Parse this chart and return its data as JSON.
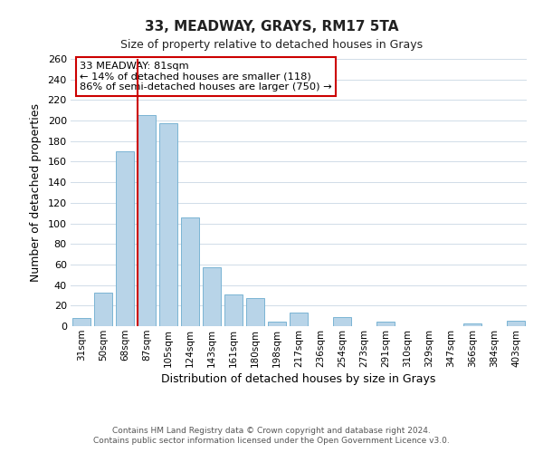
{
  "title": "33, MEADWAY, GRAYS, RM17 5TA",
  "subtitle": "Size of property relative to detached houses in Grays",
  "xlabel": "Distribution of detached houses by size in Grays",
  "ylabel": "Number of detached properties",
  "categories": [
    "31sqm",
    "50sqm",
    "68sqm",
    "87sqm",
    "105sqm",
    "124sqm",
    "143sqm",
    "161sqm",
    "180sqm",
    "198sqm",
    "217sqm",
    "236sqm",
    "254sqm",
    "273sqm",
    "291sqm",
    "310sqm",
    "329sqm",
    "347sqm",
    "366sqm",
    "384sqm",
    "403sqm"
  ],
  "values": [
    8,
    33,
    170,
    205,
    197,
    106,
    57,
    31,
    27,
    4,
    13,
    0,
    9,
    0,
    4,
    0,
    0,
    0,
    3,
    0,
    5
  ],
  "bar_color": "#b8d4e8",
  "bar_edge_color": "#7ab4d4",
  "vline_color": "#cc0000",
  "ylim": [
    0,
    260
  ],
  "yticks": [
    0,
    20,
    40,
    60,
    80,
    100,
    120,
    140,
    160,
    180,
    200,
    220,
    240,
    260
  ],
  "annotation_title": "33 MEADWAY: 81sqm",
  "annotation_line1": "← 14% of detached houses are smaller (118)",
  "annotation_line2": "86% of semi-detached houses are larger (750) →",
  "annotation_box_color": "#ffffff",
  "annotation_box_edge": "#cc0000",
  "footer1": "Contains HM Land Registry data © Crown copyright and database right 2024.",
  "footer2": "Contains public sector information licensed under the Open Government Licence v3.0.",
  "background_color": "#ffffff",
  "grid_color": "#d0dce8"
}
